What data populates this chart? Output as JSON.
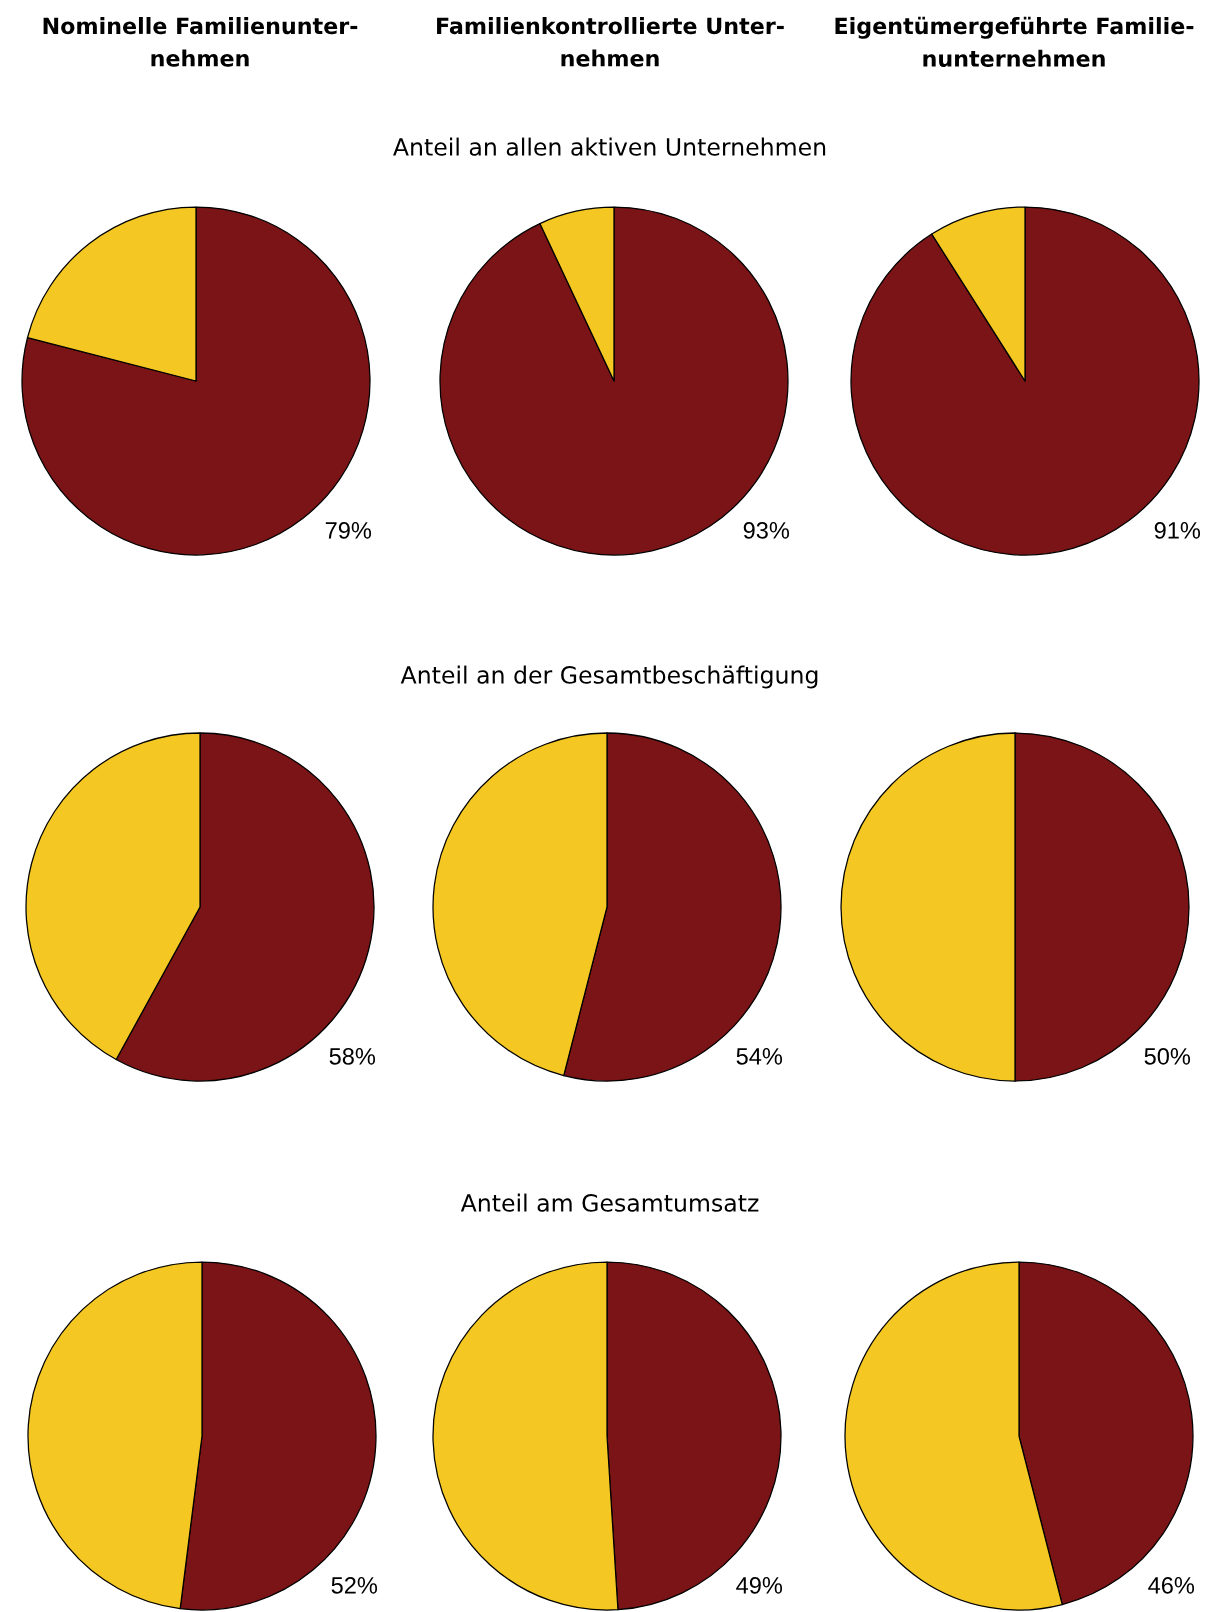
{
  "chart_data": [
    {
      "type": "pie",
      "title": "Nominelle Familienunter-\nnehmen",
      "categories": [
        null,
        null
      ],
      "values": [
        79,
        21
      ],
      "colors": [
        "#7a1416",
        "#f4c723"
      ],
      "value_labels": [
        "79%",
        null
      ]
    },
    {
      "type": "pie",
      "title": "Familienkontrollierte Unter-\nnehmen",
      "subtitle": "Anteil an allen aktiven Unternehmen",
      "categories": [
        null,
        null
      ],
      "values": [
        93,
        7
      ],
      "colors": [
        "#7a1416",
        "#f4c723"
      ],
      "value_labels": [
        "93%",
        null
      ]
    },
    {
      "type": "pie",
      "title": "Eigentümergeführte Familie-\nnunternehmen",
      "categories": [
        null,
        null
      ],
      "values": [
        91,
        9
      ],
      "colors": [
        "#7a1416",
        "#f4c723"
      ],
      "value_labels": [
        "91%",
        null
      ]
    },
    {
      "type": "pie",
      "categories": [
        null,
        null
      ],
      "values": [
        58,
        42
      ],
      "colors": [
        "#7a1416",
        "#f4c723"
      ],
      "value_labels": [
        "58%",
        null
      ]
    },
    {
      "type": "pie",
      "subtitle": "Anteil an der Gesamtbeschäftigung",
      "categories": [
        null,
        null
      ],
      "values": [
        54,
        46
      ],
      "colors": [
        "#7a1416",
        "#f4c723"
      ],
      "value_labels": [
        "54%",
        null
      ]
    },
    {
      "type": "pie",
      "categories": [
        null,
        null
      ],
      "values": [
        50,
        50
      ],
      "colors": [
        "#7a1416",
        "#f4c723"
      ],
      "value_labels": [
        "50%",
        null
      ]
    },
    {
      "type": "pie",
      "categories": [
        null,
        null
      ],
      "values": [
        52,
        48
      ],
      "colors": [
        "#7a1416",
        "#f4c723"
      ],
      "value_labels": [
        "52%",
        null
      ]
    },
    {
      "type": "pie",
      "subtitle": "Anteil am Gesamtumsatz",
      "categories": [
        null,
        null
      ],
      "values": [
        49,
        51
      ],
      "colors": [
        "#7a1416",
        "#f4c723"
      ],
      "value_labels": [
        "49%",
        null
      ]
    },
    {
      "type": "pie",
      "categories": [
        null,
        null
      ],
      "values": [
        46,
        54
      ],
      "colors": [
        "#7a1416",
        "#f4c723"
      ],
      "value_labels": [
        "46%",
        null
      ]
    }
  ]
}
